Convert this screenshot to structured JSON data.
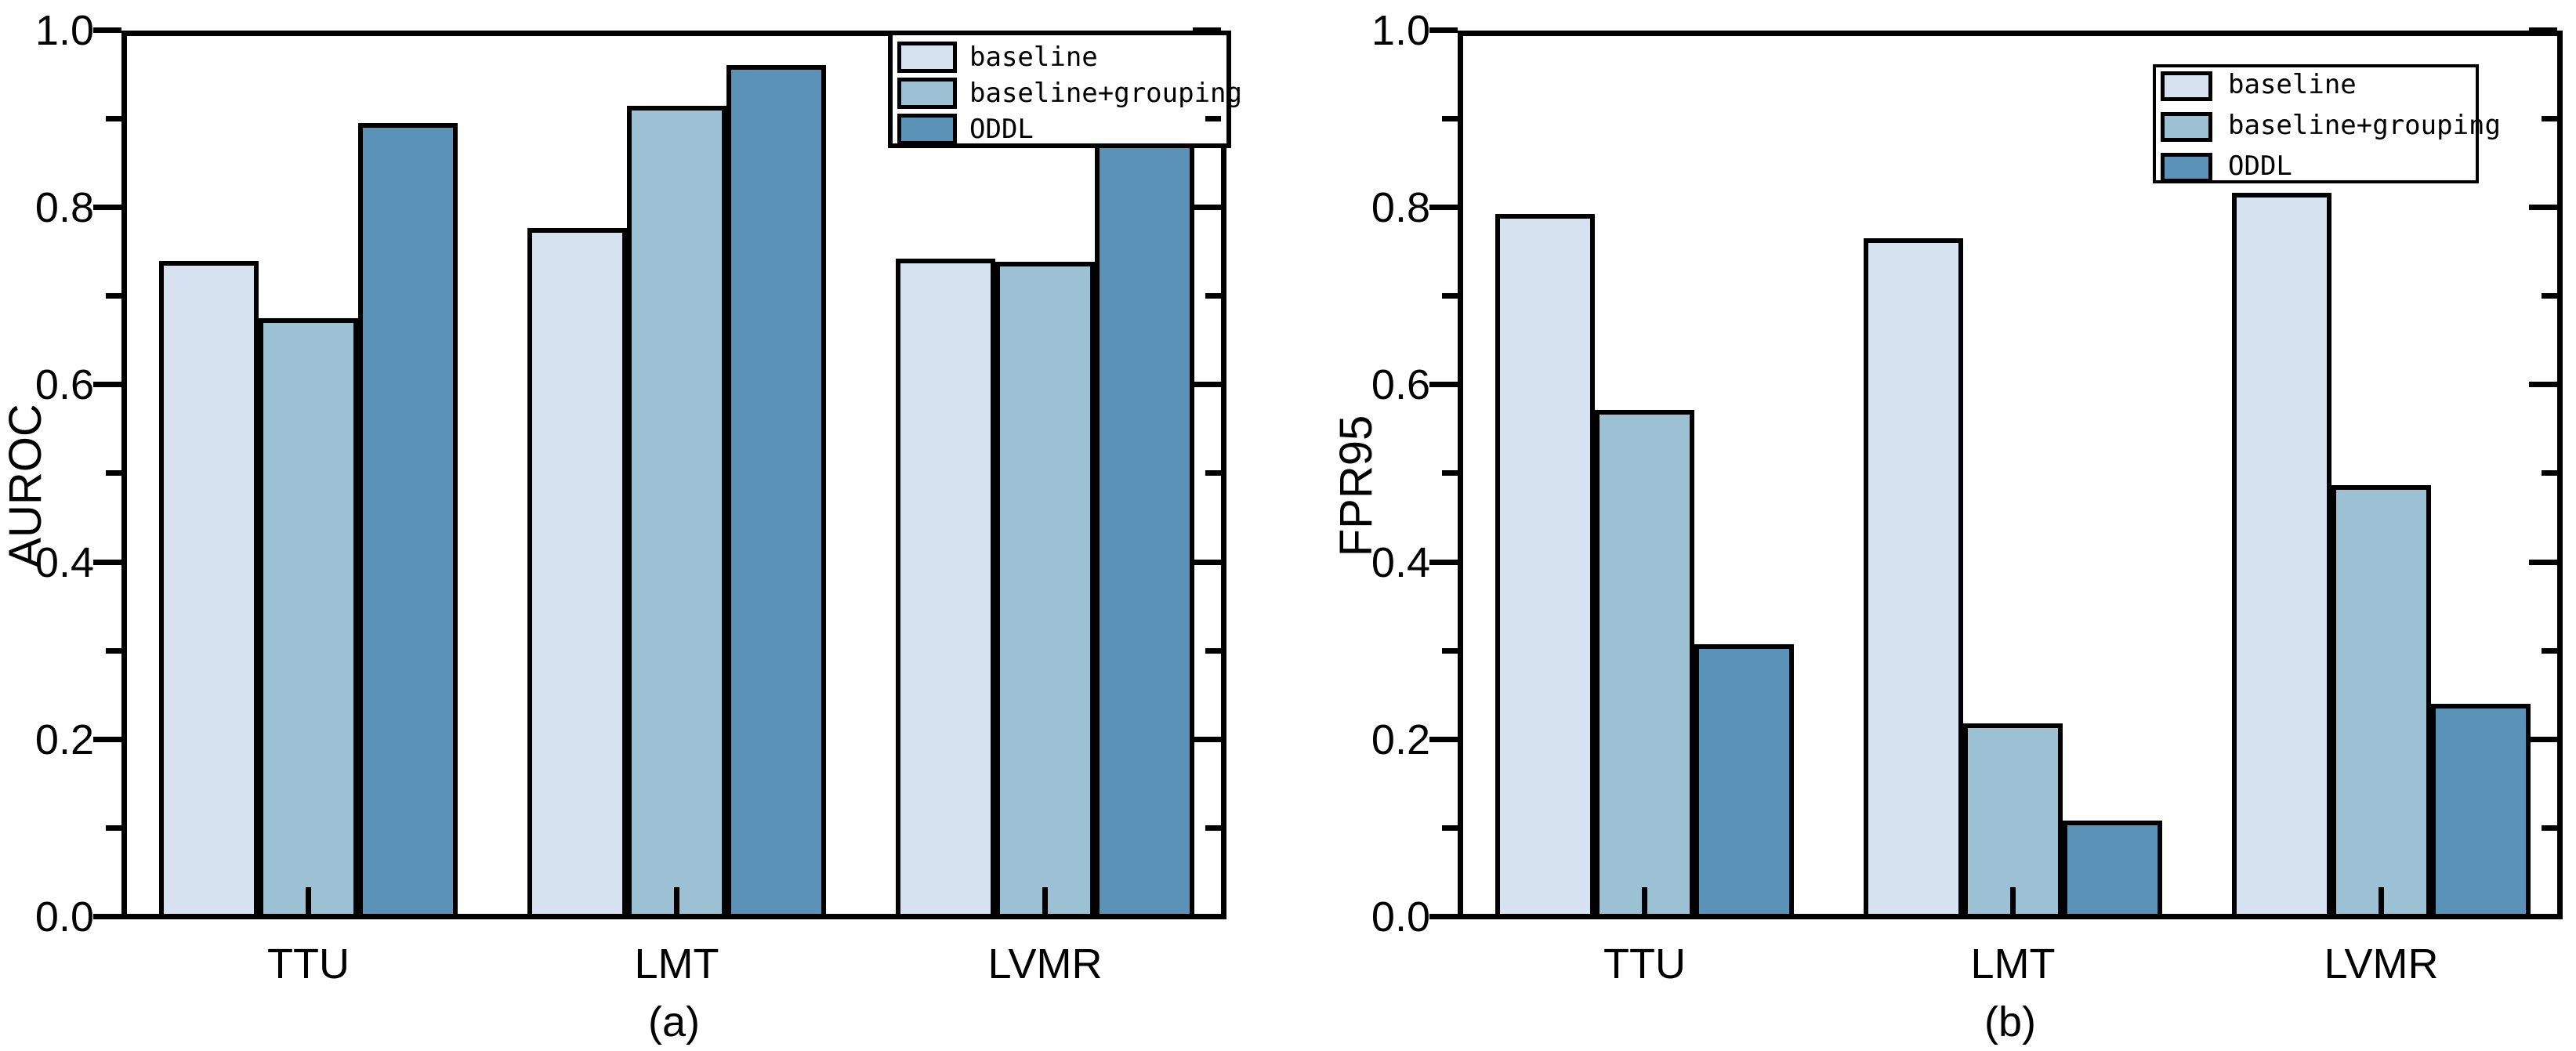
{
  "figure_background": "#ffffff",
  "frame_color": "#000000",
  "series_colors": {
    "baseline": "#d7e2f0",
    "baseline+grouping": "#9cc1d4",
    "ODDL": "#5b92b8"
  },
  "chart_data": [
    {
      "type": "bar",
      "title": "",
      "xlabel": "",
      "ylabel": "AUROC",
      "caption": "(a)",
      "categories": [
        "TTU",
        "LMT",
        "LVMR"
      ],
      "series": [
        {
          "name": "baseline",
          "color": "#d7e2f0",
          "values": [
            0.743,
            0.78,
            0.745
          ]
        },
        {
          "name": "baseline+grouping",
          "color": "#9cc1d4",
          "values": [
            0.678,
            0.918,
            0.742
          ]
        },
        {
          "name": "ODDL",
          "color": "#5b92b8",
          "values": [
            0.898,
            0.964,
            0.88
          ]
        }
      ],
      "ylim": [
        0.0,
        1.0
      ],
      "y_tick_labels": [
        "0.0",
        "0.2",
        "0.4",
        "0.6",
        "0.8",
        "1.0"
      ],
      "minor_tick_step": 0.1,
      "grid": false,
      "legend_position": "top-right-inside",
      "bar_edge_color": "#000000"
    },
    {
      "type": "bar",
      "title": "",
      "xlabel": "",
      "ylabel": "FPR95",
      "caption": "(b)",
      "categories": [
        "TTU",
        "LMT",
        "LVMR"
      ],
      "series": [
        {
          "name": "baseline",
          "color": "#d7e2f0",
          "values": [
            0.796,
            0.768,
            0.82
          ]
        },
        {
          "name": "baseline+grouping",
          "color": "#9cc1d4",
          "values": [
            0.575,
            0.221,
            0.49
          ]
        },
        {
          "name": "ODDL",
          "color": "#5b92b8",
          "values": [
            0.31,
            0.111,
            0.243
          ]
        }
      ],
      "ylim": [
        0.0,
        1.0
      ],
      "y_tick_labels": [
        "0.0",
        "0.2",
        "0.4",
        "0.6",
        "0.8",
        "1.0"
      ],
      "minor_tick_step": 0.1,
      "grid": false,
      "legend_position": "top-right-inside",
      "bar_edge_color": "#000000"
    }
  ]
}
